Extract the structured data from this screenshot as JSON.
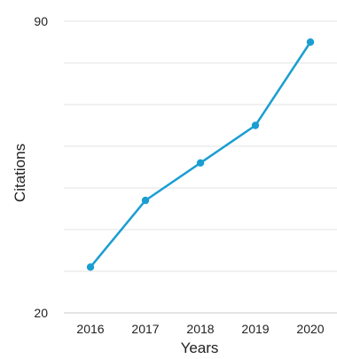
{
  "chart_data": {
    "type": "line",
    "title": "",
    "xlabel": "Years",
    "ylabel": "Citations",
    "categories": [
      "2016",
      "2017",
      "2018",
      "2019",
      "2020"
    ],
    "series": [
      {
        "values": [
          31,
          47,
          56,
          65,
          85
        ]
      }
    ],
    "ylim": [
      20,
      90
    ],
    "y_tick_labels": [
      "20",
      "90"
    ],
    "grid": true,
    "legend": "none",
    "colors": {
      "line": "#1a9ed2",
      "grid": "#e3e3e3",
      "axis": "#c8c8c8",
      "text": "#222222"
    }
  }
}
